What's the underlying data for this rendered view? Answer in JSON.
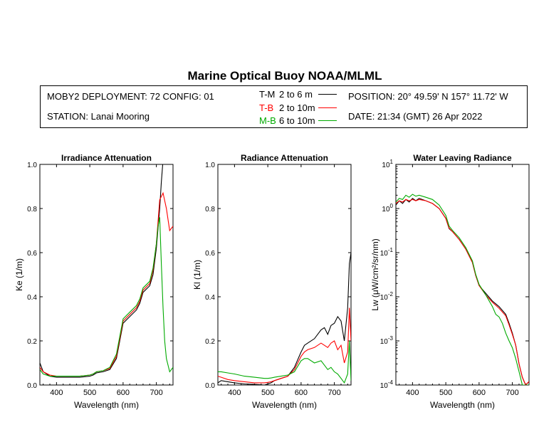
{
  "title": "Marine Optical Buoy NOAA/MLML",
  "info": {
    "deployment": "MOBY2 DEPLOYMENT: 72 CONFIG: 01",
    "station": "STATION: Lanai Mooring",
    "position": "POSITION: 20° 49.59' N   157° 11.72' W",
    "date": "DATE: 21:34 (GMT) 26 Apr 2022"
  },
  "legend": [
    {
      "name": "T-M",
      "range": "2 to 6  m",
      "color": "#000000"
    },
    {
      "name": "T-B",
      "range": "2 to 10m",
      "color": "#ff0000"
    },
    {
      "name": "M-B",
      "range": "6 to 10m",
      "color": "#00aa00"
    }
  ],
  "chart_data": [
    {
      "type": "line",
      "title": "Irradiance Attenuation",
      "xlabel": "Wavelength (nm)",
      "ylabel": "Ke  (1/m)",
      "xlim": [
        350,
        750
      ],
      "ylim": [
        0,
        1.0
      ],
      "xticks": [
        "400",
        "500",
        "600",
        "700"
      ],
      "yticks": [
        "0.0",
        "0.2",
        "0.4",
        "0.6",
        "0.8",
        "1.0"
      ],
      "series": [
        {
          "name": "T-M",
          "color": "#000000",
          "x": [
            350,
            360,
            380,
            400,
            430,
            470,
            500,
            510,
            520,
            540,
            560,
            580,
            590,
            600,
            620,
            640,
            650,
            660,
            680,
            690,
            700,
            710,
            715,
            720
          ],
          "y": [
            0.1,
            0.06,
            0.04,
            0.035,
            0.035,
            0.035,
            0.04,
            0.045,
            0.055,
            0.06,
            0.07,
            0.12,
            0.2,
            0.28,
            0.31,
            0.34,
            0.37,
            0.42,
            0.45,
            0.5,
            0.62,
            0.8,
            0.92,
            1.02
          ]
        },
        {
          "name": "T-B",
          "color": "#ff0000",
          "x": [
            350,
            360,
            380,
            400,
            430,
            470,
            500,
            510,
            520,
            540,
            560,
            580,
            590,
            600,
            620,
            640,
            650,
            660,
            680,
            690,
            700,
            710,
            720,
            730,
            740,
            750
          ],
          "y": [
            0.08,
            0.06,
            0.045,
            0.04,
            0.04,
            0.04,
            0.045,
            0.05,
            0.06,
            0.065,
            0.075,
            0.13,
            0.21,
            0.29,
            0.32,
            0.35,
            0.38,
            0.43,
            0.46,
            0.52,
            0.64,
            0.84,
            0.87,
            0.8,
            0.7,
            0.72
          ]
        },
        {
          "name": "M-B",
          "color": "#00aa00",
          "x": [
            350,
            360,
            380,
            400,
            430,
            470,
            500,
            510,
            520,
            540,
            560,
            580,
            590,
            600,
            620,
            640,
            650,
            660,
            680,
            690,
            700,
            705,
            710,
            715,
            720,
            725,
            730,
            740,
            750
          ],
          "y": [
            0.07,
            0.05,
            0.04,
            0.04,
            0.04,
            0.04,
            0.045,
            0.05,
            0.06,
            0.065,
            0.08,
            0.14,
            0.22,
            0.3,
            0.33,
            0.36,
            0.39,
            0.44,
            0.47,
            0.53,
            0.64,
            0.72,
            0.76,
            0.55,
            0.35,
            0.2,
            0.12,
            0.06,
            0.08
          ]
        }
      ]
    },
    {
      "type": "line",
      "title": "Radiance Attenuation",
      "xlabel": "Wavelength (nm)",
      "ylabel": "Kl  (1/m)",
      "xlim": [
        350,
        750
      ],
      "ylim": [
        0,
        1.0
      ],
      "xticks": [
        "400",
        "500",
        "600",
        "700"
      ],
      "yticks": [
        "0.0",
        "0.2",
        "0.4",
        "0.6",
        "0.8",
        "1.0"
      ],
      "series": [
        {
          "name": "T-M",
          "color": "#000000",
          "x": [
            350,
            360,
            380,
            400,
            430,
            460,
            490,
            500,
            510,
            520,
            540,
            560,
            580,
            600,
            610,
            620,
            640,
            660,
            670,
            680,
            690,
            700,
            710,
            720,
            730,
            740,
            745,
            750
          ],
          "y": [
            0.01,
            0.02,
            0.015,
            0.01,
            0.005,
            0.003,
            0.0,
            0.005,
            0.01,
            0.02,
            0.03,
            0.04,
            0.08,
            0.15,
            0.18,
            0.19,
            0.21,
            0.25,
            0.26,
            0.23,
            0.27,
            0.28,
            0.31,
            0.29,
            0.2,
            0.35,
            0.55,
            0.6
          ]
        },
        {
          "name": "T-B",
          "color": "#ff0000",
          "x": [
            350,
            360,
            380,
            400,
            430,
            460,
            490,
            500,
            510,
            520,
            540,
            560,
            580,
            600,
            610,
            620,
            640,
            660,
            670,
            680,
            690,
            700,
            710,
            720,
            730,
            740,
            745,
            750
          ],
          "y": [
            0.04,
            0.035,
            0.025,
            0.02,
            0.015,
            0.01,
            0.01,
            0.012,
            0.015,
            0.02,
            0.03,
            0.04,
            0.07,
            0.13,
            0.15,
            0.16,
            0.17,
            0.19,
            0.18,
            0.17,
            0.19,
            0.2,
            0.16,
            0.18,
            0.1,
            0.15,
            0.35,
            0.2
          ]
        },
        {
          "name": "M-B",
          "color": "#00aa00",
          "x": [
            350,
            360,
            380,
            400,
            430,
            460,
            490,
            500,
            510,
            520,
            540,
            560,
            580,
            600,
            610,
            620,
            640,
            660,
            670,
            680,
            690,
            700,
            710,
            720,
            730,
            740,
            745,
            750
          ],
          "y": [
            0.06,
            0.06,
            0.055,
            0.05,
            0.04,
            0.035,
            0.03,
            0.03,
            0.032,
            0.035,
            0.04,
            0.045,
            0.06,
            0.11,
            0.12,
            0.12,
            0.1,
            0.11,
            0.09,
            0.07,
            0.08,
            0.06,
            0.05,
            0.03,
            0.01,
            0.05,
            0.2,
            0.02
          ]
        }
      ]
    },
    {
      "type": "line",
      "title": "Water Leaving Radiance",
      "xlabel": "Wavelength (nm)",
      "ylabel": "Lw  (μW/cm²/sr/nm)",
      "xlim": [
        350,
        750
      ],
      "ylim": [
        0.0001,
        10
      ],
      "yscale": "log",
      "xticks": [
        "400",
        "500",
        "600",
        "700"
      ],
      "yticks": [
        {
          "base": "10",
          "exp": "-4"
        },
        {
          "base": "10",
          "exp": "-3"
        },
        {
          "base": "10",
          "exp": "-2"
        },
        {
          "base": "10",
          "exp": "-1"
        },
        {
          "base": "10",
          "exp": "0"
        },
        {
          "base": "10",
          "exp": "1"
        }
      ],
      "series": [
        {
          "name": "T-M",
          "color": "#000000",
          "x": [
            350,
            360,
            370,
            380,
            390,
            400,
            410,
            420,
            440,
            460,
            480,
            500,
            510,
            520,
            540,
            560,
            580,
            590,
            600,
            620,
            640,
            660,
            680,
            690,
            700,
            710,
            715,
            720,
            730,
            740,
            750
          ],
          "y": [
            1.2,
            1.5,
            1.3,
            1.6,
            1.4,
            1.7,
            1.5,
            1.7,
            1.5,
            1.3,
            1.0,
            0.6,
            0.35,
            0.3,
            0.2,
            0.12,
            0.06,
            0.03,
            0.018,
            0.012,
            0.008,
            0.006,
            0.004,
            0.0025,
            0.0015,
            0.0008,
            0.0005,
            0.0003,
            0.00015,
            0.0001,
            0.00012
          ]
        },
        {
          "name": "T-B",
          "color": "#ff0000",
          "x": [
            350,
            360,
            370,
            380,
            390,
            400,
            410,
            420,
            440,
            460,
            480,
            500,
            510,
            520,
            540,
            560,
            580,
            590,
            600,
            620,
            640,
            660,
            680,
            690,
            700,
            710,
            715,
            720,
            730,
            740,
            750
          ],
          "y": [
            1.3,
            1.5,
            1.4,
            1.6,
            1.5,
            1.6,
            1.5,
            1.6,
            1.5,
            1.3,
            1.0,
            0.6,
            0.36,
            0.3,
            0.2,
            0.12,
            0.06,
            0.03,
            0.018,
            0.011,
            0.0075,
            0.0055,
            0.0037,
            0.0023,
            0.0014,
            0.0008,
            0.0005,
            0.0003,
            0.00015,
            0.0001,
            0.00012
          ]
        },
        {
          "name": "M-B",
          "color": "#00aa00",
          "x": [
            350,
            360,
            370,
            380,
            390,
            400,
            410,
            420,
            440,
            460,
            480,
            500,
            510,
            520,
            540,
            560,
            580,
            590,
            600,
            620,
            640,
            650,
            660,
            670,
            680,
            690,
            700,
            710,
            720,
            730,
            740,
            750
          ],
          "y": [
            1.4,
            1.7,
            1.6,
            2.0,
            1.8,
            2.1,
            1.9,
            2.0,
            1.8,
            1.6,
            1.2,
            0.7,
            0.4,
            0.32,
            0.22,
            0.13,
            0.065,
            0.032,
            0.019,
            0.011,
            0.006,
            0.004,
            0.0035,
            0.0025,
            0.0015,
            0.001,
            0.0007,
            0.0004,
            0.0002,
            0.0001,
            0.0001,
            0.0001
          ]
        }
      ]
    }
  ]
}
